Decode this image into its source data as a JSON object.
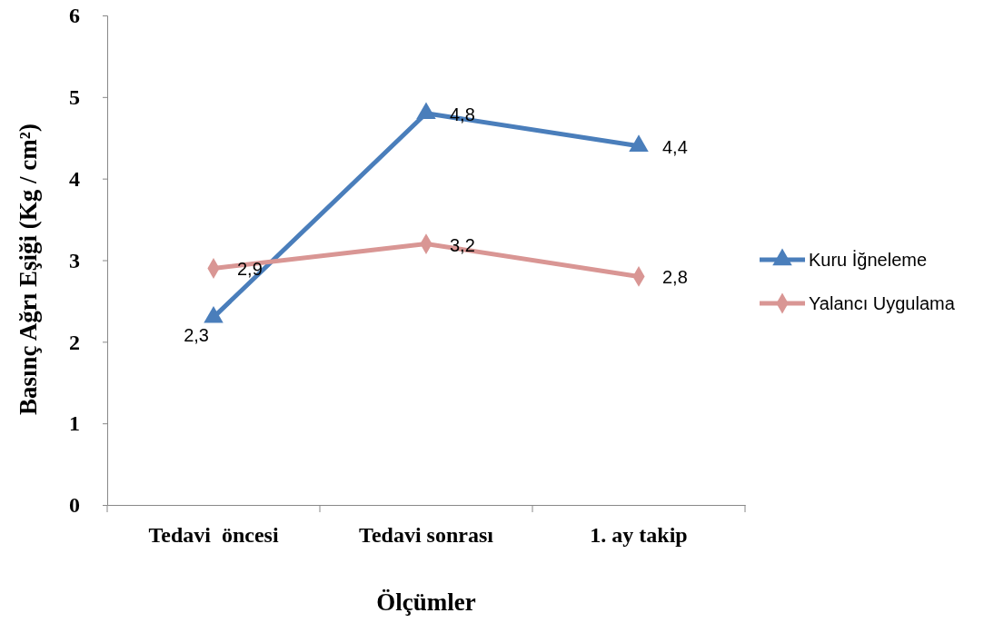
{
  "chart_data": {
    "type": "line",
    "xlabel": "Ölçümler",
    "ylabel": "Basınç Ağrı Eşiği (Kg / cm²)",
    "categories": [
      "Tedavi  öncesi",
      "Tedavi sonrası",
      "1. ay takip"
    ],
    "ylim": [
      0,
      6
    ],
    "yticks": [
      0,
      1,
      2,
      3,
      4,
      5,
      6
    ],
    "grid": false,
    "legend": "right",
    "series": [
      {
        "name": "Kuru İğneleme",
        "color": "#4a7ebb",
        "marker": "triangle",
        "values": [
          2.3,
          4.8,
          4.4
        ],
        "value_labels": [
          "2,3",
          "4,8",
          "4,4"
        ]
      },
      {
        "name": "Yalancı Uygulama",
        "color": "#d99694",
        "marker": "diamond",
        "values": [
          2.9,
          3.2,
          2.8
        ],
        "value_labels": [
          "2,9",
          "3,2",
          "2,8"
        ]
      }
    ]
  }
}
